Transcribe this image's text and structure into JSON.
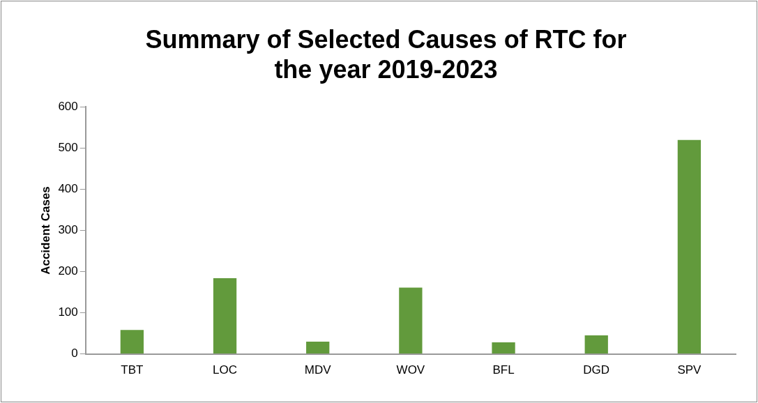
{
  "chart_data": {
    "type": "bar",
    "title": "Summary of Selected Causes of RTC for the year 2019-2023",
    "ylabel": "Accident Cases",
    "categories": [
      "TBT",
      "LOC",
      "MDV",
      "WOV",
      "BFL",
      "DGD",
      "SPV"
    ],
    "values": [
      58,
      184,
      30,
      161,
      28,
      45,
      520
    ],
    "color": "#629a3c",
    "ylim": [
      0,
      600
    ],
    "yticks": [
      0,
      100,
      200,
      300,
      400,
      500,
      600
    ],
    "grid": false,
    "legend": false
  }
}
